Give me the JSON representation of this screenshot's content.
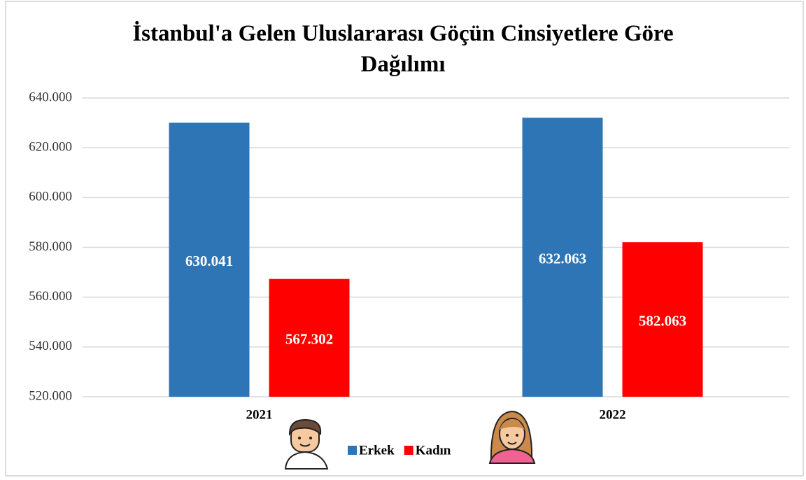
{
  "chart_data": {
    "type": "bar",
    "title": "İstanbul'a Gelen Uluslararası Göçün Cinsiyetlere Göre Dağılımı",
    "categories": [
      "2021",
      "2022"
    ],
    "series": [
      {
        "name": "Erkek",
        "color": "#2e75b6",
        "values": [
          630041,
          632063
        ],
        "value_labels": [
          "630.041",
          "632.063"
        ]
      },
      {
        "name": "Kadın",
        "color": "#ff0000",
        "values": [
          567302,
          582063
        ],
        "value_labels": [
          "567.302",
          "582.063"
        ]
      }
    ],
    "ylim": [
      520000,
      640000
    ],
    "yticks": [
      {
        "value": 520000,
        "label": "520.000"
      },
      {
        "value": 540000,
        "label": "540.000"
      },
      {
        "value": 560000,
        "label": "560.000"
      },
      {
        "value": 580000,
        "label": "580.000"
      },
      {
        "value": 600000,
        "label": "600.000"
      },
      {
        "value": 620000,
        "label": "620.000"
      },
      {
        "value": 640000,
        "label": "640.000"
      }
    ],
    "grid": true
  }
}
